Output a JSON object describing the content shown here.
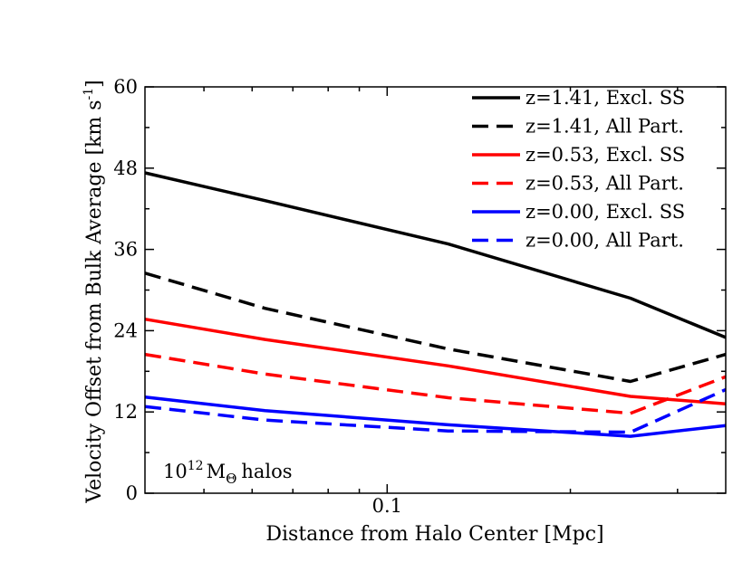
{
  "chart_data": {
    "type": "line",
    "xscale": "log",
    "xlim": [
      0.04,
      0.36
    ],
    "ylim": [
      0,
      60
    ],
    "xlabel": "Distance from Halo Center [Mpc]",
    "ylabel": "Velocity Offset from Bulk Average [km s",
    "ylabel_sup": "-1",
    "ylabel_tail": "]",
    "x_ticks_major": [
      {
        "value": 0.1,
        "label": "0.1"
      }
    ],
    "x_ticks_minor": [
      0.05,
      0.06,
      0.07,
      0.08,
      0.09,
      0.2,
      0.3
    ],
    "y_ticks": [
      0,
      12,
      24,
      36,
      48,
      60
    ],
    "y_tick_labels": [
      "0",
      "12",
      "24",
      "36",
      "48",
      "60"
    ],
    "annotation": {
      "base": "10",
      "sup": "12",
      "mass": "M",
      "sub": "Θ",
      "tail": "halos"
    },
    "legend": {
      "position": "top-right"
    },
    "x": [
      0.04,
      0.063,
      0.126,
      0.251,
      0.36
    ],
    "series": [
      {
        "name": "z=1.41, Excl. SS",
        "color": "#000000",
        "dash": false,
        "values": [
          47.3,
          43.2,
          36.8,
          28.8,
          23.0
        ]
      },
      {
        "name": "z=1.41, All Part.",
        "color": "#000000",
        "dash": true,
        "values": [
          32.5,
          27.3,
          21.3,
          16.5,
          20.5
        ]
      },
      {
        "name": "z=0.53, Excl. SS",
        "color": "#ff0000",
        "dash": false,
        "values": [
          25.7,
          22.7,
          18.8,
          14.3,
          13.2
        ]
      },
      {
        "name": "z=0.53, All Part.",
        "color": "#ff0000",
        "dash": true,
        "values": [
          20.5,
          17.6,
          14.1,
          11.8,
          17.2
        ]
      },
      {
        "name": "z=0.00, Excl. SS",
        "color": "#0000ff",
        "dash": false,
        "values": [
          14.2,
          12.2,
          10.1,
          8.4,
          10.0
        ]
      },
      {
        "name": "z=0.00, All Part.",
        "color": "#0000ff",
        "dash": true,
        "values": [
          12.8,
          10.8,
          9.2,
          9.0,
          15.3
        ]
      }
    ]
  }
}
